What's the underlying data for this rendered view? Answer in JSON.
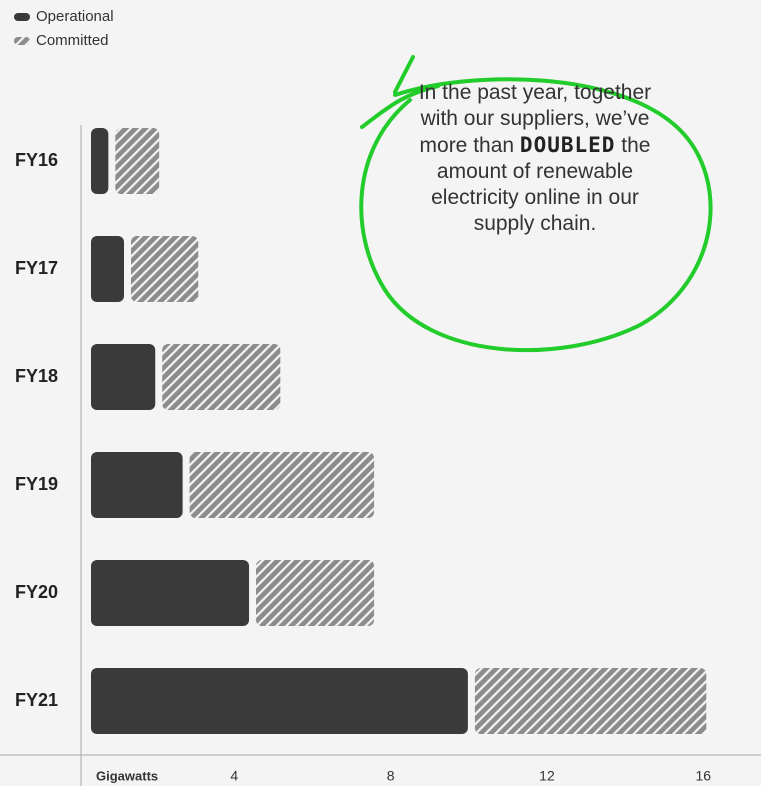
{
  "chart_data": {
    "type": "hbar_stacked",
    "categories": [
      "FY16",
      "FY17",
      "FY18",
      "FY19",
      "FY20",
      "FY21"
    ],
    "series": [
      {
        "name": "Operational",
        "color": "#3a3a3a",
        "values": [
          0.7,
          1.1,
          1.9,
          2.6,
          4.3,
          9.9
        ]
      },
      {
        "name": "Committed",
        "color": "#8c8c8c",
        "pattern": "hatch",
        "values": [
          1.3,
          1.9,
          3.2,
          4.9,
          3.2,
          6.1
        ]
      }
    ],
    "x_label": "Gigawatts",
    "xlim": [
      0,
      17.4
    ],
    "xticks": [
      4,
      8,
      12,
      16
    ],
    "legend": "top-left",
    "annotation": {
      "before": "In the past year, together with our suppliers, we’ve more than",
      "emphasis": "DOUBLED",
      "after": "the amount of renewable electricity online in our supply chain."
    }
  }
}
